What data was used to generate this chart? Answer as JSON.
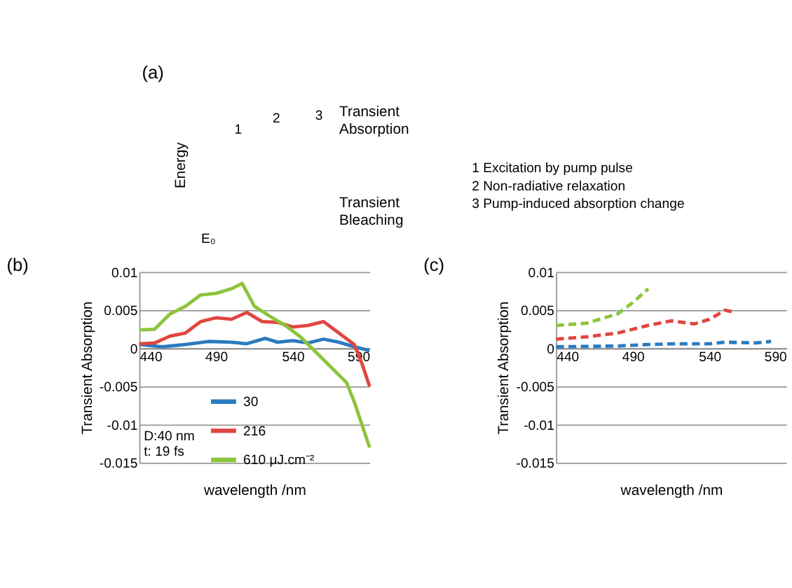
{
  "chart_data": [
    {
      "type": "other",
      "title": "(a)",
      "annotations": [
        "Energy",
        "E₀",
        "1",
        "2",
        "3",
        "Transient Absorption",
        "Transient Bleaching",
        "1 Excitation by pump pulse",
        "2 Non-radiative relaxation",
        "3 Pump-induced absorption change"
      ]
    },
    {
      "type": "line",
      "title": "(b)",
      "xlabel": "wavelength /nm",
      "ylabel": "Transient Absorption",
      "xlim": [
        440,
        590
      ],
      "xticks": [
        440,
        490,
        540,
        590
      ],
      "ylim": [
        -0.015,
        0.01
      ],
      "yticks": [
        -0.015,
        -0.01,
        -0.005,
        0,
        0.005,
        0.01
      ],
      "grid": "y",
      "legend": "bottom",
      "line_style": "solid",
      "annotations": [
        "D:40 nm",
        "t: 19 fs"
      ],
      "series": [
        {
          "name": "30",
          "color": "#2a7bc0",
          "x": [
            440,
            455,
            470,
            485,
            500,
            510,
            522,
            530,
            540,
            550,
            560,
            570,
            580,
            590
          ],
          "values": [
            0.0005,
            0.0002,
            0.0005,
            0.0009,
            0.0008,
            0.0006,
            0.0013,
            0.0008,
            0.001,
            0.0007,
            0.0012,
            0.0008,
            0.0002,
            -0.0003
          ]
        },
        {
          "name": "216",
          "color": "#e0463f",
          "x": [
            440,
            450,
            460,
            470,
            480,
            490,
            500,
            510,
            520,
            530,
            540,
            550,
            560,
            570,
            580,
            585,
            590
          ],
          "values": [
            0.0006,
            0.0007,
            0.0016,
            0.002,
            0.0035,
            0.004,
            0.0038,
            0.0047,
            0.0035,
            0.0034,
            0.0028,
            0.003,
            0.0035,
            0.002,
            0.0005,
            -0.002,
            -0.005
          ]
        },
        {
          "name": "610  μJ.cm⁻²",
          "color": "#8cc43c",
          "x": [
            440,
            450,
            460,
            470,
            480,
            490,
            500,
            507,
            515,
            525,
            535,
            545,
            555,
            565,
            575,
            580,
            585,
            590
          ],
          "values": [
            0.0024,
            0.0025,
            0.0045,
            0.0055,
            0.007,
            0.0072,
            0.0078,
            0.0085,
            0.0055,
            0.0042,
            0.003,
            0.0015,
            -0.0005,
            -0.0025,
            -0.0045,
            -0.007,
            -0.01,
            -0.013
          ]
        }
      ]
    },
    {
      "type": "line",
      "title": "(c)",
      "xlabel": "wavelength /nm",
      "ylabel": "Transient Absorption",
      "xlim": [
        440,
        590
      ],
      "xticks": [
        440,
        490,
        540,
        590
      ],
      "ylim": [
        -0.015,
        0.01
      ],
      "yticks": [
        -0.015,
        -0.01,
        -0.005,
        0,
        0.005,
        0.01
      ],
      "grid": "y",
      "line_style": "dashed",
      "series": [
        {
          "color": "#2a7bc0",
          "x": [
            440,
            480,
            500,
            520,
            540,
            550,
            570,
            580
          ],
          "values": [
            0.0002,
            0.0003,
            0.0005,
            0.0006,
            0.0006,
            0.0008,
            0.0007,
            0.0009
          ]
        },
        {
          "color": "#e0463f",
          "x": [
            440,
            460,
            480,
            500,
            515,
            530,
            540,
            550,
            557
          ],
          "values": [
            0.0012,
            0.0015,
            0.002,
            0.003,
            0.0036,
            0.0032,
            0.0038,
            0.005,
            0.0047
          ]
        },
        {
          "color": "#8cc43c",
          "x": [
            440,
            460,
            480,
            490,
            500
          ],
          "values": [
            0.003,
            0.0033,
            0.0045,
            0.006,
            0.0078
          ]
        }
      ]
    }
  ]
}
